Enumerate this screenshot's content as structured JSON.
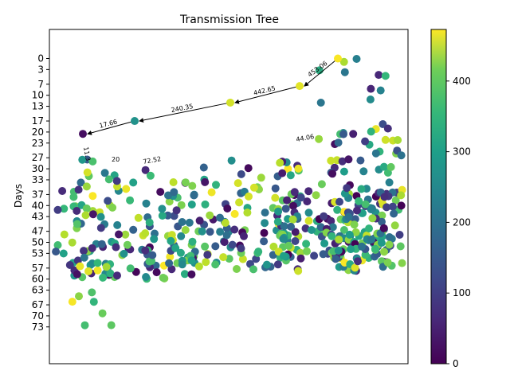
{
  "chart_data": {
    "type": "scatter",
    "title": "Transmission Tree",
    "xlabel": "",
    "ylabel": "Days",
    "ylim": [
      0,
      78
    ],
    "y_inverted": true,
    "y_ticks": [
      0,
      3,
      7,
      10,
      13,
      17,
      20,
      23,
      27,
      30,
      33,
      37,
      40,
      43,
      47,
      50,
      53,
      57,
      60,
      63,
      67,
      70,
      73
    ],
    "x_ticks": [],
    "colormap": "viridis",
    "colorbar": {
      "ticks": [
        0,
        100,
        200,
        300,
        400
      ],
      "range": [
        0,
        473
      ]
    },
    "colors": {
      "low": "#440154",
      "mid": "#21918c",
      "high": "#fde725"
    },
    "highlighted_nodes": [
      {
        "id": "root",
        "day": 0,
        "color_value": 470
      },
      {
        "id": "n1",
        "day": 7.5,
        "color_value": 453
      },
      {
        "id": "n2",
        "day": 12,
        "color_value": 442
      },
      {
        "id": "n3",
        "day": 17,
        "color_value": 240
      },
      {
        "id": "n4",
        "day": 20.5,
        "color_value": 18
      }
    ],
    "edges": [
      {
        "from": "root",
        "to": "n1",
        "label": "453.06"
      },
      {
        "from": "n1",
        "to": "n2",
        "label": "442.65"
      },
      {
        "from": "n2",
        "to": "n3",
        "label": "240.35"
      },
      {
        "from": "n3",
        "to": "n4",
        "label": "17.66"
      }
    ],
    "partial_labels": [
      "72.52",
      "44.06",
      "11.3",
      "20"
    ]
  }
}
